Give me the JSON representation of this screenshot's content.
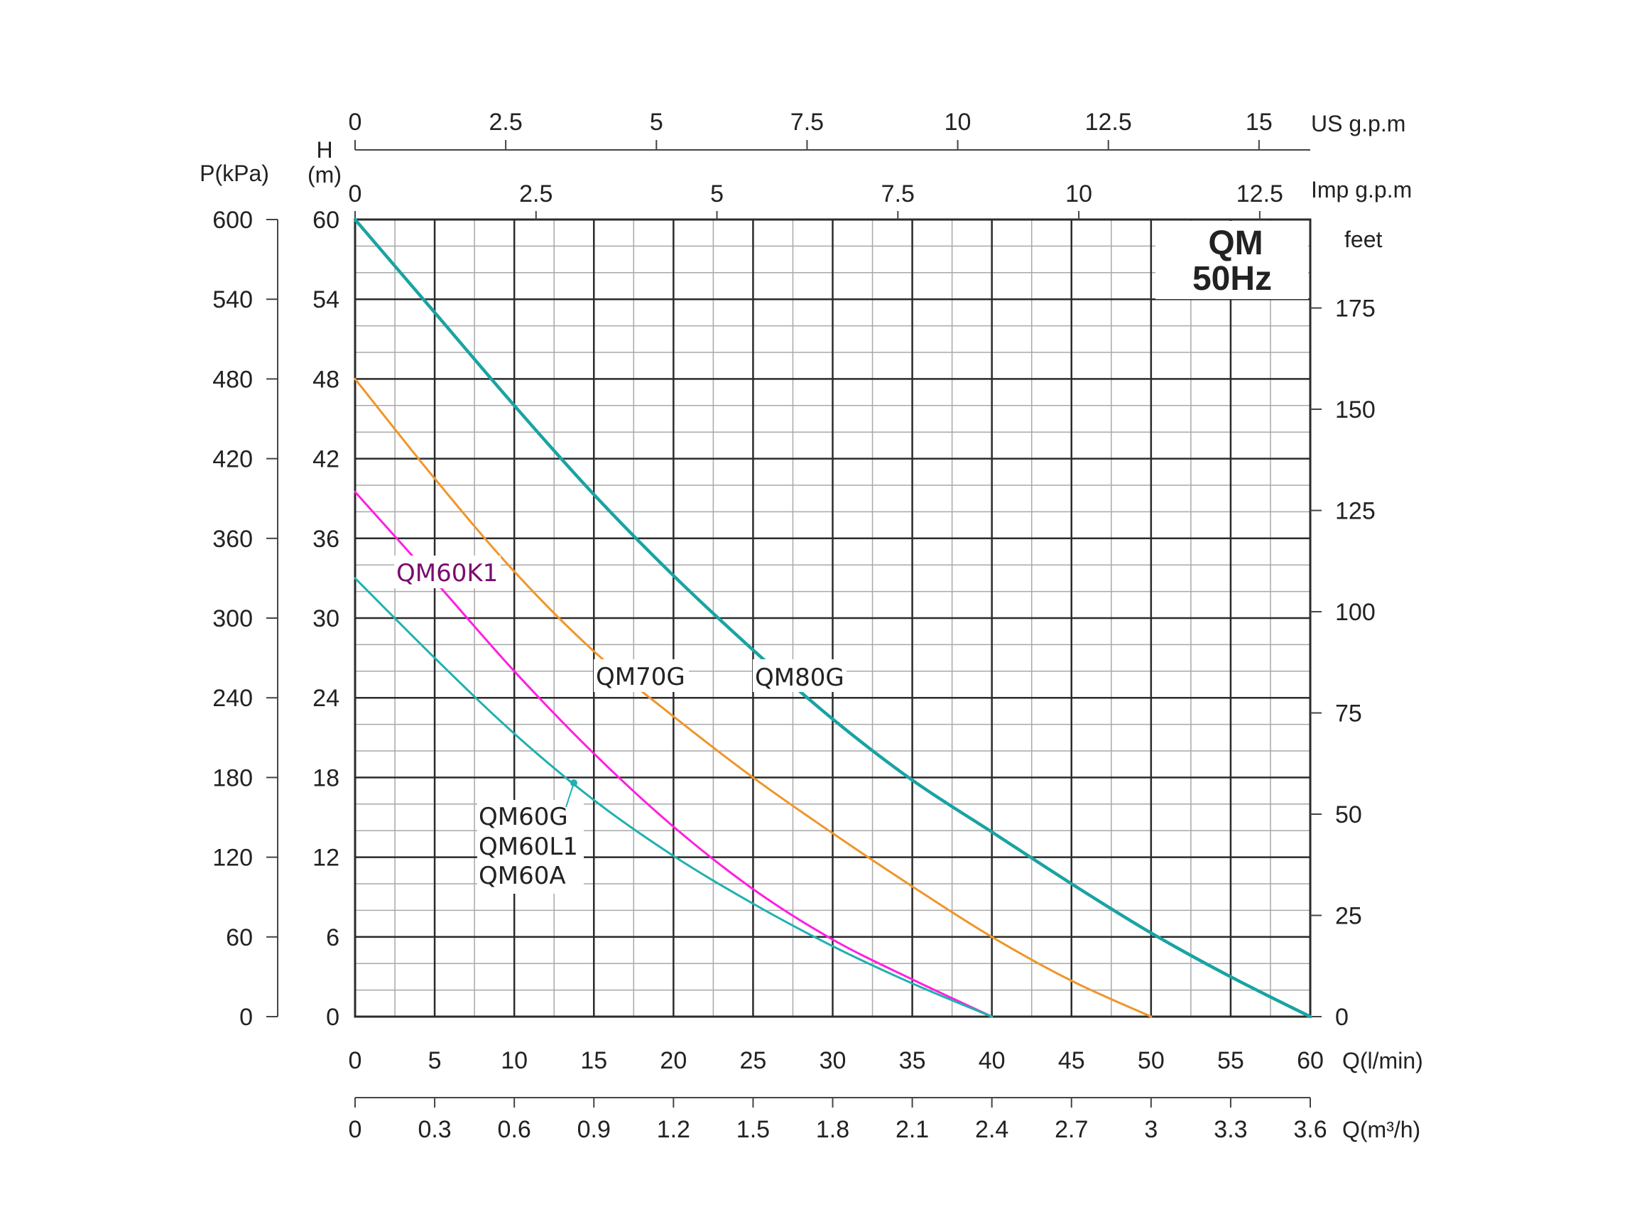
{
  "chart_data": {
    "type": "line",
    "title": "QM",
    "subtitle": "50Hz",
    "x_axis": {
      "label": "Q(l/min)",
      "range": [
        0,
        60
      ],
      "ticks": [
        "0",
        "5",
        "10",
        "15",
        "20",
        "25",
        "30",
        "35",
        "40",
        "45",
        "50",
        "55",
        "60"
      ]
    },
    "x_axis_m3h": {
      "label": "Q(m³/h)",
      "range": [
        0,
        3.6
      ],
      "ticks": [
        "0",
        "0.3",
        "0.6",
        "0.9",
        "1.2",
        "1.5",
        "1.8",
        "2.1",
        "2.4",
        "2.7",
        "3",
        "3.3",
        "3.6"
      ]
    },
    "x_axis_us_gpm": {
      "label": "US  g.p.m",
      "ticks": [
        {
          "value": 0,
          "label": "0"
        },
        {
          "value": 2.5,
          "label": "2.5"
        },
        {
          "value": 5,
          "label": "5"
        },
        {
          "value": 7.5,
          "label": "7.5"
        },
        {
          "value": 10,
          "label": "10"
        },
        {
          "value": 12.5,
          "label": "12.5"
        },
        {
          "value": 15,
          "label": "15"
        }
      ]
    },
    "x_axis_imp_gpm": {
      "label": "Imp  g.p.m",
      "ticks": [
        {
          "value": 0,
          "label": "0"
        },
        {
          "value": 2.5,
          "label": "2.5"
        },
        {
          "value": 5,
          "label": "5"
        },
        {
          "value": 7.5,
          "label": "7.5"
        },
        {
          "value": 10,
          "label": "10"
        },
        {
          "value": 12.5,
          "label": "12.5"
        }
      ]
    },
    "y_axis_head": {
      "label_line1": "H",
      "label_line2": "(m)",
      "range": [
        0,
        60
      ],
      "ticks": [
        "0",
        "6",
        "12",
        "18",
        "24",
        "30",
        "36",
        "42",
        "48",
        "54",
        "60"
      ]
    },
    "y_axis_pressure": {
      "label": "P(kPa)",
      "range": [
        0,
        600
      ],
      "ticks": [
        "0",
        "60",
        "120",
        "180",
        "240",
        "300",
        "360",
        "420",
        "480",
        "540",
        "600"
      ]
    },
    "y_axis_feet": {
      "label": "feet",
      "ticks": [
        {
          "value": 0,
          "label": "0"
        },
        {
          "value": 25,
          "label": "25"
        },
        {
          "value": 50,
          "label": "50"
        },
        {
          "value": 75,
          "label": "75"
        },
        {
          "value": 100,
          "label": "100"
        },
        {
          "value": 125,
          "label": "125"
        },
        {
          "value": 150,
          "label": "150"
        },
        {
          "value": 175,
          "label": "175"
        }
      ]
    },
    "grid": true,
    "series": [
      {
        "name": "QM80G",
        "color": "#1aa3a3",
        "x": [
          0,
          5,
          10,
          15,
          20,
          25,
          30,
          35,
          40,
          45,
          50,
          55,
          60
        ],
        "y": [
          60,
          53,
          46,
          39.3,
          33.2,
          27.6,
          22.4,
          17.8,
          13.9,
          10,
          6.3,
          3,
          0
        ]
      },
      {
        "name": "QM70G",
        "color": "#f0952a",
        "x": [
          0,
          5,
          10,
          15,
          20,
          25,
          30,
          35,
          40,
          45,
          50
        ],
        "y": [
          48,
          40.5,
          33.5,
          27.5,
          22.6,
          18,
          13.8,
          9.8,
          6,
          2.7,
          0
        ]
      },
      {
        "name": "QM60K1",
        "color": "#ff1fe0",
        "x": [
          0,
          5,
          10,
          15,
          20,
          25,
          30,
          35,
          40
        ],
        "y": [
          39.5,
          32.8,
          26,
          19.8,
          14.3,
          9.6,
          5.8,
          2.8,
          0
        ]
      },
      {
        "name": "QM60G QM60L1 QM60A",
        "color": "#22b0b0",
        "x": [
          0,
          5,
          10,
          15,
          20,
          25,
          30,
          35,
          40
        ],
        "y": [
          33,
          27,
          21.3,
          16.3,
          12.1,
          8.5,
          5.3,
          2.5,
          0
        ]
      }
    ],
    "labels": {
      "qm80g": "QM80G",
      "qm70g": "QM70G",
      "qm60k1": "QM60K1",
      "qm60g": "QM60G",
      "qm60l1": "QM60L1",
      "qm60a": "QM60A"
    }
  }
}
